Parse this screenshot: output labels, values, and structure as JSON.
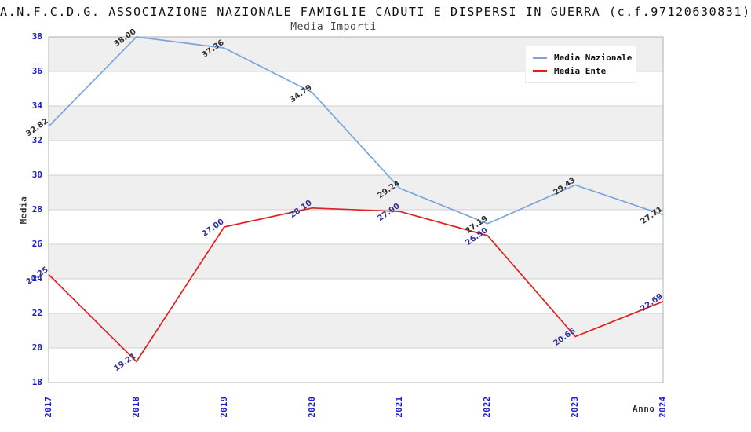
{
  "header": {
    "title": "A.N.F.C.D.G. ASSOCIAZIONE NAZIONALE FAMIGLIE CADUTI E DISPERSI IN GUERRA (c.f.97120630831)",
    "subtitle": "Media Importi"
  },
  "axes": {
    "y_label": "Media",
    "x_label": "Anno",
    "y_ticks": [
      38,
      36,
      34,
      32,
      30,
      28,
      26,
      24,
      22,
      20,
      18
    ]
  },
  "legend": {
    "items": [
      {
        "label": "Media Nazionale",
        "color": "#7aa6dc"
      },
      {
        "label": "Media Ente",
        "color": "#e01f1f"
      }
    ]
  },
  "colors": {
    "band": "#efefef",
    "grid": "#d0d0d0",
    "frame": "#b0b0b0",
    "tick_label": "#1a1acc",
    "axis_title": "#333333"
  },
  "chart_data": {
    "type": "line",
    "title": "Media Importi",
    "xlabel": "Anno",
    "ylabel": "Media",
    "ylim": [
      18,
      38
    ],
    "y_tick_step": 2,
    "grid": "horizontal-bands",
    "legend_position": "top-right",
    "categories": [
      "2017",
      "2018",
      "2019",
      "2020",
      "2021",
      "2022",
      "2023",
      "2024"
    ],
    "series": [
      {
        "name": "Media Nazionale",
        "color": "#7aa6dc",
        "label_color": "#333333",
        "values": [
          32.82,
          38.0,
          37.36,
          34.79,
          29.24,
          27.19,
          29.43,
          27.71
        ]
      },
      {
        "name": "Media Ente",
        "color": "#e01f1f",
        "label_color": "#333399",
        "values": [
          24.25,
          19.21,
          27.0,
          28.1,
          27.9,
          26.5,
          20.66,
          22.69
        ]
      }
    ]
  }
}
